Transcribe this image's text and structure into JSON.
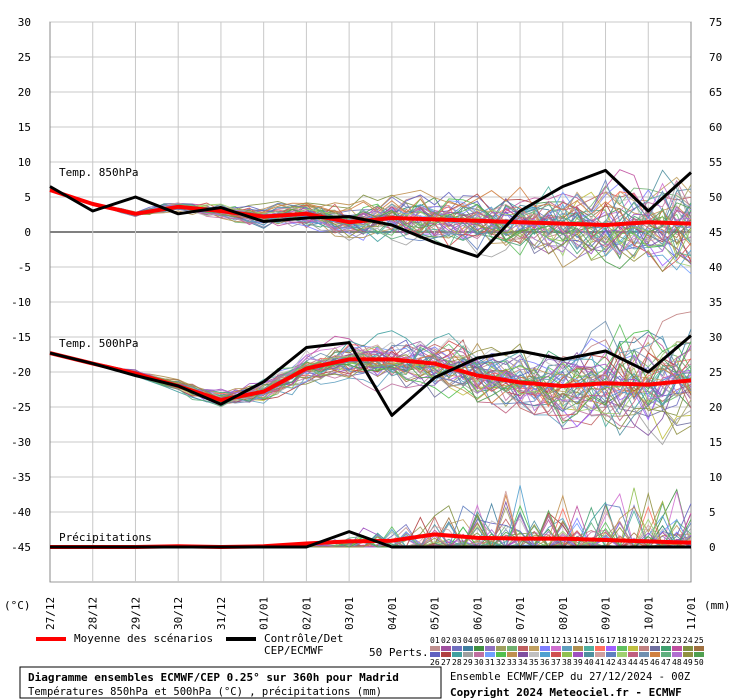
{
  "chart_data": {
    "type": "line",
    "title": "Diagramme ensembles ECMWF/CEP 0.25° sur 360h pour Madrid",
    "subtitle": "Températures 850hPa et 500hPa (°C) , précipitations (mm)",
    "left_unit": "(°C)",
    "right_unit": "(mm)",
    "y_left_ticks": [
      "30",
      "25",
      "20",
      "15",
      "10",
      "5",
      "0",
      "-5",
      "-10",
      "-15",
      "-20",
      "-25",
      "-30",
      "-35",
      "-40",
      "-45"
    ],
    "y_right_ticks": [
      "75",
      "70",
      "65",
      "60",
      "55",
      "50",
      "45",
      "40",
      "35",
      "30",
      "25",
      "20",
      "15",
      "10",
      "5",
      "0"
    ],
    "x_ticks": [
      "27/12",
      "28/12",
      "29/12",
      "30/12",
      "31/12",
      "01/01",
      "02/01",
      "03/01",
      "04/01",
      "05/01",
      "06/01",
      "07/01",
      "08/01",
      "09/01",
      "10/01",
      "11/01"
    ],
    "grid": true,
    "panel_labels": {
      "t850": "Temp. 850hPa",
      "t500": "Temp. 500hPa",
      "precip": "Précipitations"
    },
    "series": [
      {
        "name": "Moyenne des scénarios",
        "color": "#ff0000",
        "t850": [
          6.0,
          4.0,
          2.6,
          3.6,
          3.0,
          2.2,
          2.6,
          1.4,
          2.0,
          1.8,
          1.6,
          1.4,
          1.2,
          1.0,
          1.4,
          1.2
        ],
        "t500": [
          -17.3,
          -18.8,
          -20.2,
          -22.0,
          -24.0,
          -22.8,
          -19.5,
          -18.2,
          -18.2,
          -18.8,
          -20.5,
          -21.5,
          -22.0,
          -21.6,
          -21.8,
          -21.2
        ],
        "precip_mm": [
          0,
          0,
          0,
          0.1,
          0,
          0.1,
          0.5,
          0.8,
          0.9,
          1.8,
          1.3,
          1.2,
          1.2,
          1.0,
          0.8,
          0.6
        ]
      },
      {
        "name": "Contrôle/Det CEP/ECMWF",
        "color": "#000000",
        "t850": [
          6.5,
          3.0,
          5.0,
          2.6,
          3.5,
          1.5,
          2.0,
          2.2,
          1.0,
          -1.5,
          -3.5,
          3.0,
          6.5,
          8.8,
          3.0,
          8.5
        ],
        "t500": [
          -17.3,
          -18.8,
          -20.5,
          -22.0,
          -24.6,
          -21.4,
          -16.5,
          -15.8,
          -26.2,
          -20.8,
          -18.0,
          -17.0,
          -18.2,
          -17.0,
          -20.0,
          -14.8
        ],
        "precip_mm": [
          0,
          0,
          0,
          0,
          0,
          0,
          0,
          2.2,
          0,
          0,
          0,
          0,
          0,
          0,
          0,
          0
        ]
      }
    ],
    "ensemble_members": 50,
    "legend": {
      "mean_label": "Moyenne des scénarios",
      "control_label_1": "Contrôle/Det",
      "control_label_2": "CEP/ECMWF",
      "perts_label": "50 Perts.",
      "numbers_row1": [
        "01",
        "02",
        "03",
        "04",
        "05",
        "06",
        "07",
        "08",
        "09",
        "10",
        "11",
        "12",
        "13",
        "14",
        "15",
        "16",
        "17",
        "18",
        "19",
        "20",
        "21",
        "22",
        "23",
        "24",
        "25"
      ],
      "numbers_row2": [
        "26",
        "27",
        "28",
        "29",
        "30",
        "31",
        "32",
        "33",
        "34",
        "35",
        "36",
        "37",
        "38",
        "39",
        "40",
        "41",
        "42",
        "43",
        "44",
        "45",
        "46",
        "47",
        "48",
        "49",
        "50"
      ],
      "member_colors": [
        "#c09090",
        "#a050a0",
        "#7070c0",
        "#4080a0",
        "#409040",
        "#9070c0",
        "#a0a060",
        "#70b070",
        "#c06060",
        "#c0a060",
        "#8080ff",
        "#d070d0",
        "#60a0c0",
        "#b09050",
        "#50b0a0",
        "#ff7060",
        "#a060ff",
        "#60c060",
        "#c0c040",
        "#c08080",
        "#7070a0",
        "#40a070",
        "#c050a0",
        "#809040",
        "#a07040",
        "#6060c0",
        "#b04040",
        "#40a0a0",
        "#a0a0a0",
        "#c070a0",
        "#70a0ff",
        "#50c050",
        "#c09050",
        "#8050a0",
        "#c0c0c0",
        "#50a0d0",
        "#d05050",
        "#90c050",
        "#a050c0",
        "#5090a0",
        "#d0a0a0",
        "#6080c0",
        "#a0d070",
        "#c06080",
        "#7090b0",
        "#d08040",
        "#60b080",
        "#b070d0",
        "#909040",
        "#50a050"
      ]
    },
    "footer_left": "Ensemble ECMWF/CEP du 27/12/2024 - 00Z",
    "copyright": "Copyright 2024 Meteociel.fr - ECMWF"
  }
}
